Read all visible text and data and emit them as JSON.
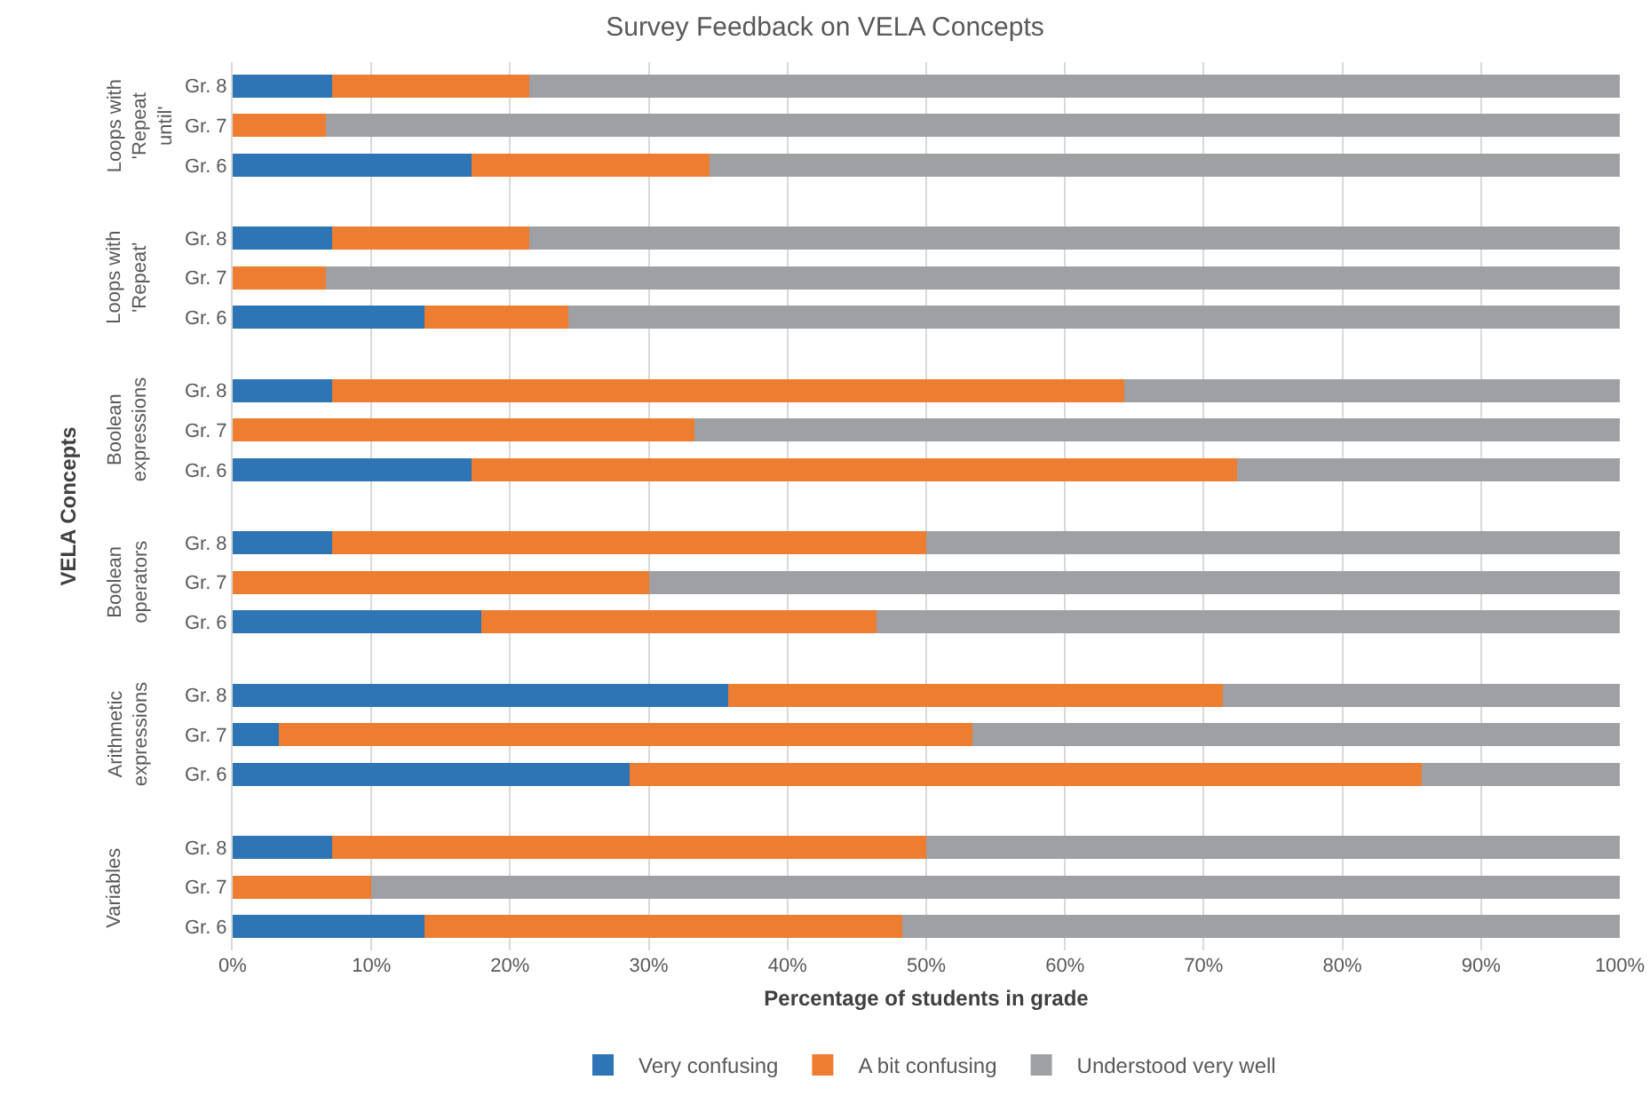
{
  "chart_data": {
    "type": "bar",
    "orientation": "horizontal",
    "stacked": true,
    "title": "Survey Feedback on VELA Concepts",
    "xlabel": "Percentage of students in grade",
    "ylabel": "VELA Concepts",
    "categories": [
      "Gr. 8",
      "Gr. 7",
      "Gr. 6",
      "Gr. 8",
      "Gr. 7",
      "Gr. 6",
      "Gr. 8",
      "Gr. 7",
      "Gr. 6",
      "Gr. 8",
      "Gr. 7",
      "Gr. 6",
      "Gr. 8",
      "Gr. 7",
      "Gr. 6",
      "Gr. 8",
      "Gr. 7",
      "Gr. 6"
    ],
    "annotations": [
      "Loops with 'Repeat until'",
      "Loops with 'Repeat'",
      "Boolean expressions",
      "Boolean operators",
      "Arithmetic expressions",
      "Variables"
    ],
    "series": [
      {
        "name": "Very confusing",
        "color": "#2e75b6",
        "values": [
          7.2,
          0,
          17.2,
          7.2,
          0,
          13.8,
          7.2,
          0,
          17.2,
          7.2,
          0,
          17.9,
          35.7,
          3.3,
          28.6,
          7.2,
          0,
          13.8
        ]
      },
      {
        "name": "A bit confusing",
        "color": "#ed7d31",
        "values": [
          14.2,
          6.7,
          17.2,
          14.2,
          6.7,
          10.4,
          57.1,
          33.3,
          55.2,
          42.8,
          30,
          28.5,
          35.7,
          50,
          57.1,
          42.8,
          10,
          34.5
        ]
      },
      {
        "name": "Understood very well",
        "color": "#9ea0a3",
        "values": [
          78.6,
          93.3,
          65.6,
          78.6,
          93.3,
          75.8,
          35.7,
          66.7,
          27.6,
          50,
          70,
          53.6,
          28.6,
          46.7,
          14.3,
          50,
          90,
          51.7
        ]
      }
    ],
    "xlim": [
      0,
      100
    ],
    "xticks": [
      {
        "value": 0,
        "label": "0%"
      },
      {
        "value": 10,
        "label": "10%"
      },
      {
        "value": 20,
        "label": "20%"
      },
      {
        "value": 30,
        "label": "30%"
      },
      {
        "value": 40,
        "label": "40%"
      },
      {
        "value": 50,
        "label": "50%"
      },
      {
        "value": 60,
        "label": "60%"
      },
      {
        "value": 70,
        "label": "70%"
      },
      {
        "value": 80,
        "label": "80%"
      },
      {
        "value": 90,
        "label": "90%"
      },
      {
        "value": 100,
        "label": "100%"
      }
    ],
    "grid": "x",
    "legend": "bottom"
  }
}
